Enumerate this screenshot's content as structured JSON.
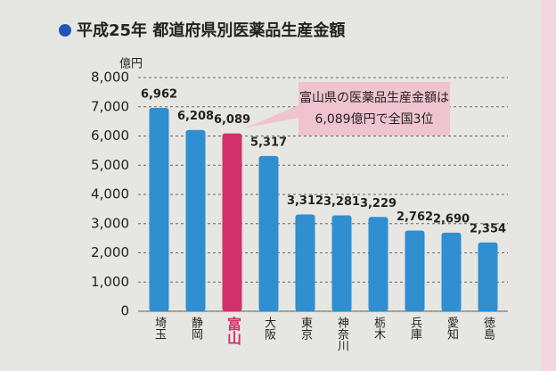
{
  "chart_data": {
    "type": "bar",
    "title": "平成25年 都道府県別医薬品生産金額",
    "y_unit": "億円",
    "annotation": [
      "富山県の医薬品生産金額は",
      "6,089億円で全国3位"
    ],
    "categories": [
      "埼玉",
      "静岡",
      "富山",
      "大阪",
      "東京",
      "神奈川",
      "栃木",
      "兵庫",
      "愛知",
      "徳島"
    ],
    "values": [
      6962,
      6208,
      6089,
      5317,
      3312,
      3281,
      3229,
      2762,
      2690,
      2354
    ],
    "value_labels": [
      "6,962",
      "6,208",
      "6,089",
      "5,317",
      "3,312",
      "3,281",
      "3,229",
      "2,762",
      "2,690",
      "2,354"
    ],
    "color": "#2f8fd0",
    "highlight_color": "#d2306a",
    "highlight_index": 2,
    "ylim": [
      0,
      8000
    ],
    "yticks": [
      0,
      {
        "value": 1000,
        "label": "1,000"
      },
      {
        "value": 2000,
        "label": "2,000"
      },
      {
        "value": 3000,
        "label": "3,000"
      },
      {
        "value": 4000,
        "label": "4,000"
      },
      {
        "value": 5000,
        "label": "5,000"
      },
      {
        "value": 6000,
        "label": "6,000"
      },
      {
        "value": 7000,
        "label": "7,000"
      },
      {
        "value": 8000,
        "label": "8,000"
      }
    ],
    "grid": true
  }
}
